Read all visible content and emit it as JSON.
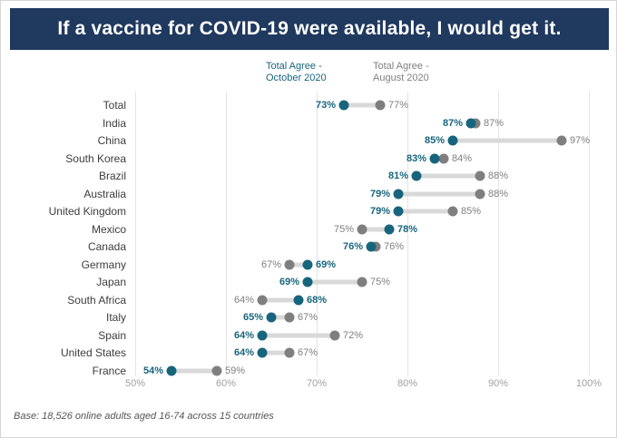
{
  "banner": {
    "title": "If a vaccine for COVID-19 were available, I would get it."
  },
  "footer": {
    "text": "Base: 18,526 online adults aged 16-74 across 15 countries"
  },
  "colors": {
    "banner_bg": "#20395F",
    "october": "#17657D",
    "august": "#7F7F7F",
    "connector": "#D9D9D9"
  },
  "chart_data": {
    "type": "scatter",
    "subtype": "dumbbell",
    "title": "If a vaccine for COVID-19 were available, I would get it.",
    "xlabel": "",
    "ylabel": "",
    "xlim": [
      50,
      100
    ],
    "x_ticks": [
      "50%",
      "60%",
      "70%",
      "80%",
      "90%",
      "100%"
    ],
    "grid": true,
    "legend_position": "top",
    "categories": [
      "Total",
      "India",
      "China",
      "South Korea",
      "Brazil",
      "Australia",
      "United Kingdom",
      "Mexico",
      "Canada",
      "Germany",
      "Japan",
      "South Africa",
      "Italy",
      "Spain",
      "United States",
      "France"
    ],
    "series": [
      {
        "name": "Total Agree - October 2020",
        "color": "#17657D",
        "values": [
          73,
          87,
          85,
          83,
          81,
          79,
          79,
          78,
          76,
          69,
          69,
          68,
          65,
          64,
          64,
          54
        ]
      },
      {
        "name": "Total Agree - August 2020",
        "color": "#7F7F7F",
        "values": [
          77,
          87,
          97,
          84,
          88,
          88,
          85,
          75,
          76,
          67,
          75,
          64,
          67,
          72,
          67,
          59
        ]
      }
    ],
    "value_suffix": "%"
  }
}
